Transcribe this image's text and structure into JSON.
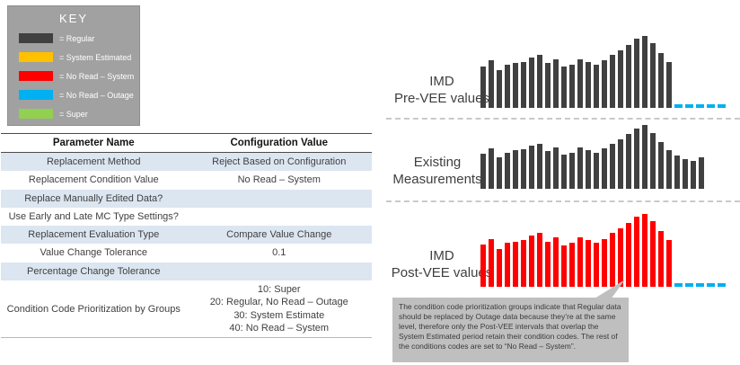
{
  "key": {
    "title": "KEY",
    "items": [
      {
        "label": "= Regular",
        "color": "#404040"
      },
      {
        "label": "= System Estimated",
        "color": "#FFC000"
      },
      {
        "label": "= No Read – System",
        "color": "#FF0000"
      },
      {
        "label": "= No Read – Outage",
        "color": "#00B0F0"
      },
      {
        "label": "= Super",
        "color": "#92D050"
      }
    ]
  },
  "table": {
    "headers": {
      "name": "Parameter Name",
      "value": "Configuration Value"
    },
    "rows": [
      {
        "name": "Replacement Method",
        "value": "Reject Based on Configuration"
      },
      {
        "name": "Replacement Condition Value",
        "value": "No Read – System"
      },
      {
        "name": "Replace Manually Edited Data?",
        "value": ""
      },
      {
        "name": "Use Early and Late MC Type Settings?",
        "value": ""
      },
      {
        "name": "Replacement Evaluation Type",
        "value": "Compare Value Change"
      },
      {
        "name": "Value Change Tolerance",
        "value": "0.1"
      },
      {
        "name": "Percentage Change Tolerance",
        "value": ""
      },
      {
        "name": "Condition Code Prioritization by Groups",
        "value": "10: Super\n20: Regular, No Read – Outage\n30: System Estimate\n40: No Read – System"
      }
    ]
  },
  "charts": {
    "pre_vee_label": "IMD\nPre-VEE values",
    "existing_label": "Existing\nMeasurements",
    "post_vee_label": "IMD\nPost-VEE values"
  },
  "chart_data": [
    {
      "type": "bar",
      "title": "IMD Pre-VEE values",
      "values": [
        58,
        66,
        52,
        60,
        62,
        64,
        70,
        74,
        62,
        68,
        57,
        60,
        68,
        64,
        60,
        66,
        74,
        80,
        88,
        96,
        100,
        90,
        76,
        64
      ],
      "bar_color": "#404040",
      "trailing_dashes": 5,
      "dash_color": "#00B0F0",
      "ylim": [
        0,
        100
      ],
      "grid": false,
      "legend": false
    },
    {
      "type": "bar",
      "title": "Existing Measurements",
      "values": [
        55,
        63,
        50,
        57,
        60,
        62,
        67,
        71,
        59,
        65,
        54,
        57,
        65,
        61,
        57,
        63,
        71,
        78,
        86,
        94,
        100,
        88,
        73,
        61,
        52,
        47,
        44,
        50
      ],
      "bar_color": "#404040",
      "trailing_dashes": 0,
      "ylim": [
        0,
        100
      ],
      "grid": false,
      "legend": false
    },
    {
      "type": "bar",
      "title": "IMD Post-VEE values",
      "values": [
        58,
        66,
        52,
        60,
        62,
        64,
        70,
        74,
        62,
        68,
        57,
        60,
        68,
        64,
        60,
        66,
        74,
        80,
        88,
        96,
        100,
        90,
        76,
        64
      ],
      "bar_color": "#FF0000",
      "trailing_dashes": 5,
      "dash_color": "#00B0F0",
      "ylim": [
        0,
        100
      ],
      "grid": false,
      "legend": false
    }
  ],
  "callout": {
    "text": "The condition code prioritization groups indicate that Regular data should be replaced by Outage data because they’re at the same level, therefore only the Post-VEE intervals that overlap the System Estimated period retain their condition codes.  The rest of the conditions codes are set to “No Read – System”."
  }
}
